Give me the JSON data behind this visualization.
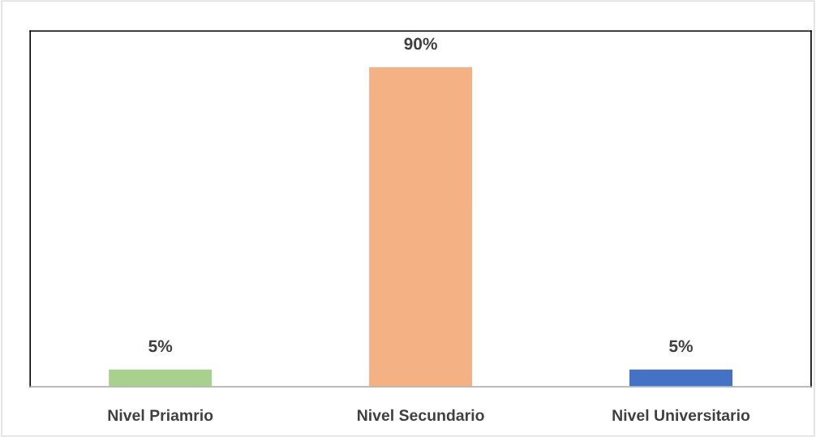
{
  "chart_data": {
    "type": "bar",
    "categories": [
      "Nivel Priamrio",
      "Nivel Secundario",
      "Nivel Universitario"
    ],
    "values": [
      5,
      90,
      5
    ],
    "value_labels": [
      "5%",
      "90%",
      "5%"
    ],
    "colors": [
      "#a9d18e",
      "#f4b183",
      "#4472c4"
    ],
    "ylim": [
      0,
      100
    ],
    "tick_labels": "x",
    "grid": false,
    "legend": false
  }
}
